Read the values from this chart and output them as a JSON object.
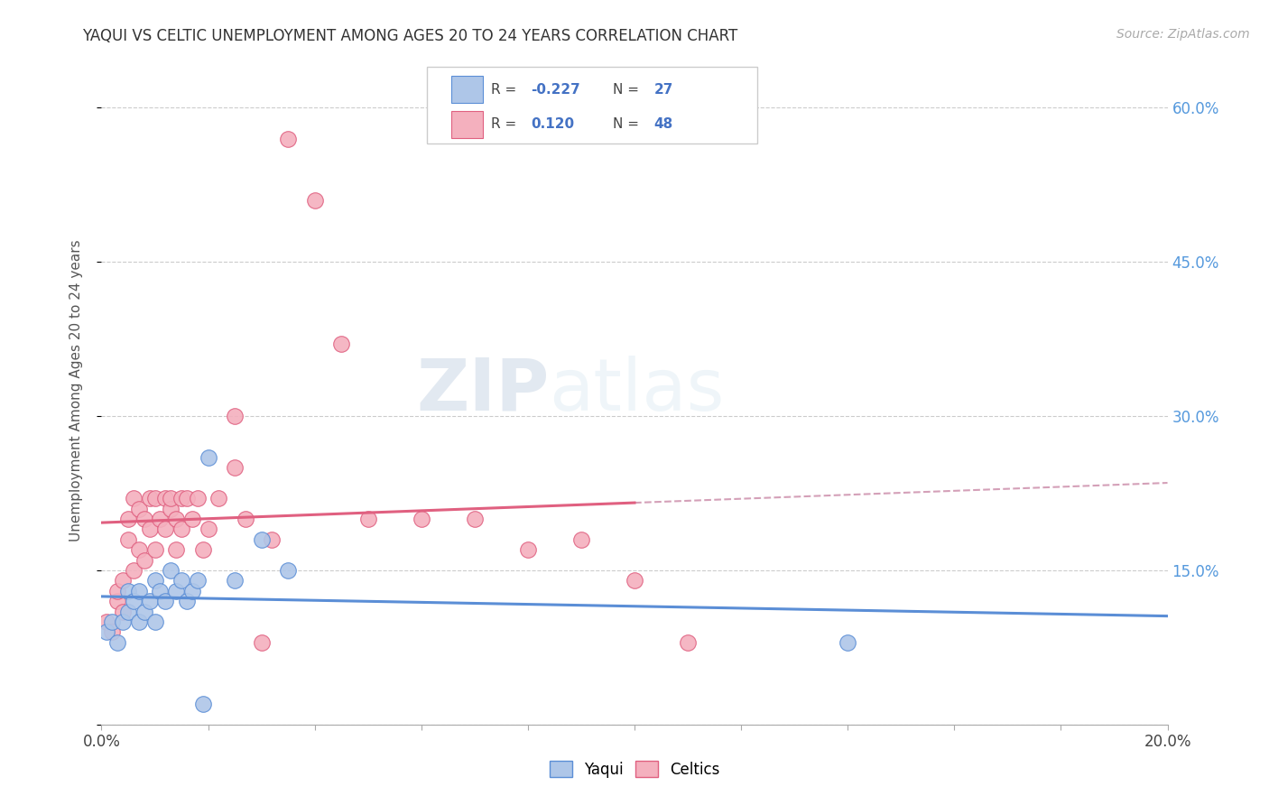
{
  "title": "YAQUI VS CELTIC UNEMPLOYMENT AMONG AGES 20 TO 24 YEARS CORRELATION CHART",
  "source": "Source: ZipAtlas.com",
  "ylabel": "Unemployment Among Ages 20 to 24 years",
  "xlim": [
    0.0,
    0.2
  ],
  "ylim": [
    0.0,
    0.65
  ],
  "yticks": [
    0.0,
    0.15,
    0.3,
    0.45,
    0.6
  ],
  "ytick_labels": [
    "",
    "15.0%",
    "30.0%",
    "45.0%",
    "60.0%"
  ],
  "xticks": [
    0.0,
    0.02,
    0.04,
    0.06,
    0.08,
    0.1,
    0.12,
    0.14,
    0.16,
    0.18,
    0.2
  ],
  "xtick_labels": [
    "0.0%",
    "",
    "",
    "",
    "",
    "",
    "",
    "",
    "",
    "",
    "20.0%"
  ],
  "yaqui_R": -0.227,
  "yaqui_N": 27,
  "celtics_R": 0.12,
  "celtics_N": 48,
  "yaqui_color": "#aec6e8",
  "celtics_color": "#f4b0be",
  "yaqui_line_color": "#5b8ed6",
  "celtics_line_color": "#e06080",
  "dashed_line_color": "#d4a0b8",
  "background_color": "#ffffff",
  "yaqui_x": [
    0.001,
    0.002,
    0.003,
    0.004,
    0.005,
    0.005,
    0.006,
    0.007,
    0.007,
    0.008,
    0.009,
    0.01,
    0.01,
    0.011,
    0.012,
    0.013,
    0.014,
    0.015,
    0.016,
    0.017,
    0.018,
    0.02,
    0.025,
    0.03,
    0.035,
    0.14,
    0.019
  ],
  "yaqui_y": [
    0.09,
    0.1,
    0.08,
    0.1,
    0.11,
    0.13,
    0.12,
    0.1,
    0.13,
    0.11,
    0.12,
    0.14,
    0.1,
    0.13,
    0.12,
    0.15,
    0.13,
    0.14,
    0.12,
    0.13,
    0.14,
    0.26,
    0.14,
    0.18,
    0.15,
    0.08,
    0.02
  ],
  "celtics_x": [
    0.001,
    0.002,
    0.003,
    0.003,
    0.004,
    0.004,
    0.005,
    0.005,
    0.006,
    0.006,
    0.007,
    0.007,
    0.008,
    0.008,
    0.009,
    0.009,
    0.01,
    0.01,
    0.011,
    0.012,
    0.012,
    0.013,
    0.013,
    0.014,
    0.014,
    0.015,
    0.015,
    0.016,
    0.017,
    0.018,
    0.019,
    0.02,
    0.022,
    0.025,
    0.025,
    0.027,
    0.03,
    0.032,
    0.035,
    0.04,
    0.045,
    0.05,
    0.06,
    0.07,
    0.08,
    0.09,
    0.1,
    0.11
  ],
  "celtics_y": [
    0.1,
    0.09,
    0.12,
    0.13,
    0.11,
    0.14,
    0.2,
    0.18,
    0.15,
    0.22,
    0.17,
    0.21,
    0.2,
    0.16,
    0.19,
    0.22,
    0.17,
    0.22,
    0.2,
    0.19,
    0.22,
    0.21,
    0.22,
    0.2,
    0.17,
    0.22,
    0.19,
    0.22,
    0.2,
    0.22,
    0.17,
    0.19,
    0.22,
    0.3,
    0.25,
    0.2,
    0.08,
    0.18,
    0.57,
    0.51,
    0.37,
    0.2,
    0.2,
    0.2,
    0.17,
    0.18,
    0.14,
    0.08
  ]
}
